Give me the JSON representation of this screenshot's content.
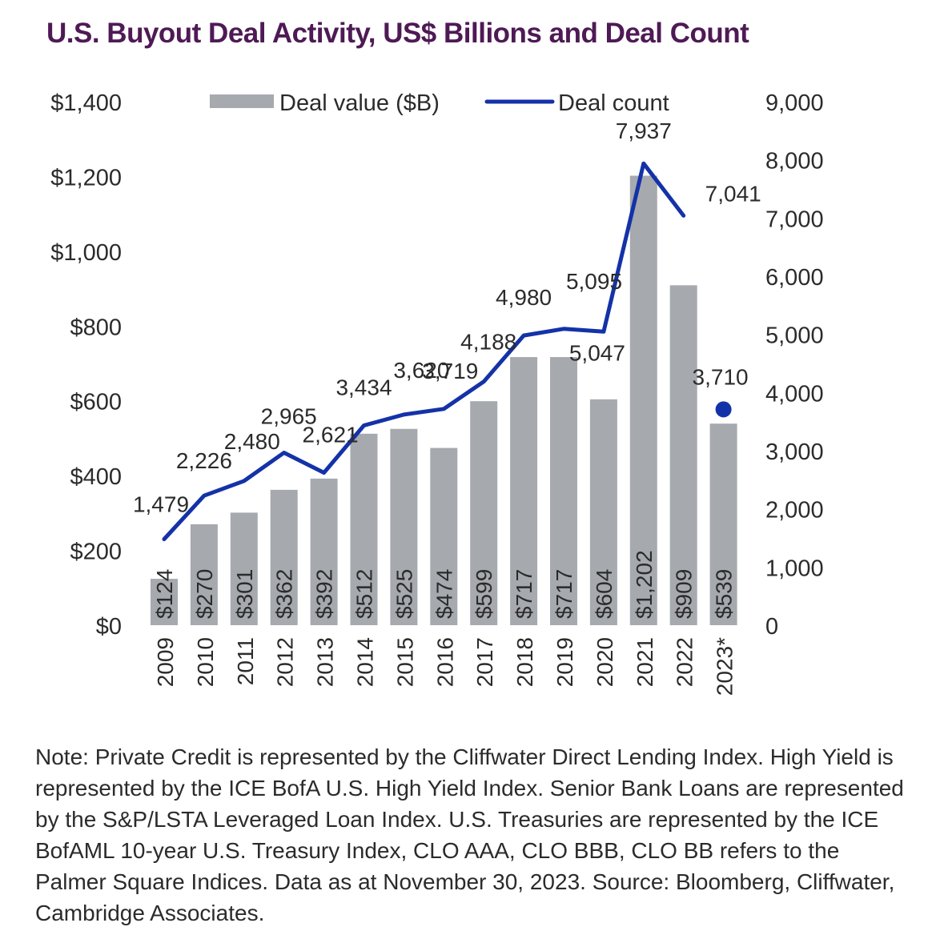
{
  "title": "U.S. Buyout Deal Activity, US$ Billions and Deal Count",
  "note": "Note: Private Credit is represented by the Cliffwater Direct Lending Index. High Yield is represented by the ICE BofA U.S. High Yield Index. Senior Bank Loans are represented by the S&P/LSTA Leveraged Loan Index. U.S. Treasuries are represented by the ICE BofAML 10-year U.S. Treasury Index, CLO AAA, CLO BBB, CLO BB refers to the Palmer Square Indices. Data as at November 30, 2023. Source: Bloomberg, Cliffwater, Cambridge Associates.",
  "colors": {
    "bar": "#a6a9ae",
    "line": "#1432a8",
    "title": "#4e1a55",
    "text": "#2b2b2b"
  },
  "chart_data": {
    "type": "bar",
    "title": "U.S. Buyout Deal Activity, US$ Billions and Deal Count",
    "categories": [
      "2009",
      "2010",
      "2011",
      "2012",
      "2013",
      "2014",
      "2015",
      "2016",
      "2017",
      "2018",
      "2019",
      "2020",
      "2021",
      "2022",
      "2023*"
    ],
    "legend": {
      "placement": "top",
      "entries": [
        "Deal value ($B)",
        "Deal count"
      ]
    },
    "series": [
      {
        "name": "Deal value ($B)",
        "type": "bar",
        "axis": "left",
        "values": [
          124,
          270,
          301,
          362,
          392,
          512,
          525,
          474,
          599,
          717,
          717,
          604,
          1202,
          909,
          539
        ],
        "labels": [
          "$124",
          "$270",
          "$301",
          "$362",
          "$392",
          "$512",
          "$525",
          "$474",
          "$599",
          "$717",
          "$717",
          "$604",
          "$1,202",
          "$909",
          "$539"
        ]
      },
      {
        "name": "Deal count",
        "type": "line",
        "axis": "right",
        "values": [
          1479,
          2226,
          2480,
          2965,
          2621,
          3434,
          3620,
          3719,
          4188,
          4980,
          5095,
          5047,
          7937,
          7041,
          3710
        ],
        "labels": [
          "1,479",
          "2,226",
          "2,480",
          "2,965",
          "2,621",
          "3,434",
          "3,620",
          "3,719",
          "4,188",
          "4,980",
          "5,095",
          "5,047",
          "7,937",
          "7,041",
          "3,710"
        ],
        "last_point_separate_marker": true
      }
    ],
    "y_left": {
      "range": [
        0,
        1400
      ],
      "ticks": [
        0,
        200,
        400,
        600,
        800,
        1000,
        1200,
        1400
      ],
      "tick_labels": [
        "$0",
        "$200",
        "$400",
        "$600",
        "$800",
        "$1,000",
        "$1,200",
        "$1,400"
      ]
    },
    "y_right": {
      "range": [
        0,
        9000
      ],
      "ticks": [
        0,
        1000,
        2000,
        3000,
        4000,
        5000,
        6000,
        7000,
        8000,
        9000
      ],
      "tick_labels": [
        "0",
        "1,000",
        "2,000",
        "3,000",
        "4,000",
        "5,000",
        "6,000",
        "7,000",
        "8,000",
        "9,000"
      ]
    },
    "grid": false
  }
}
